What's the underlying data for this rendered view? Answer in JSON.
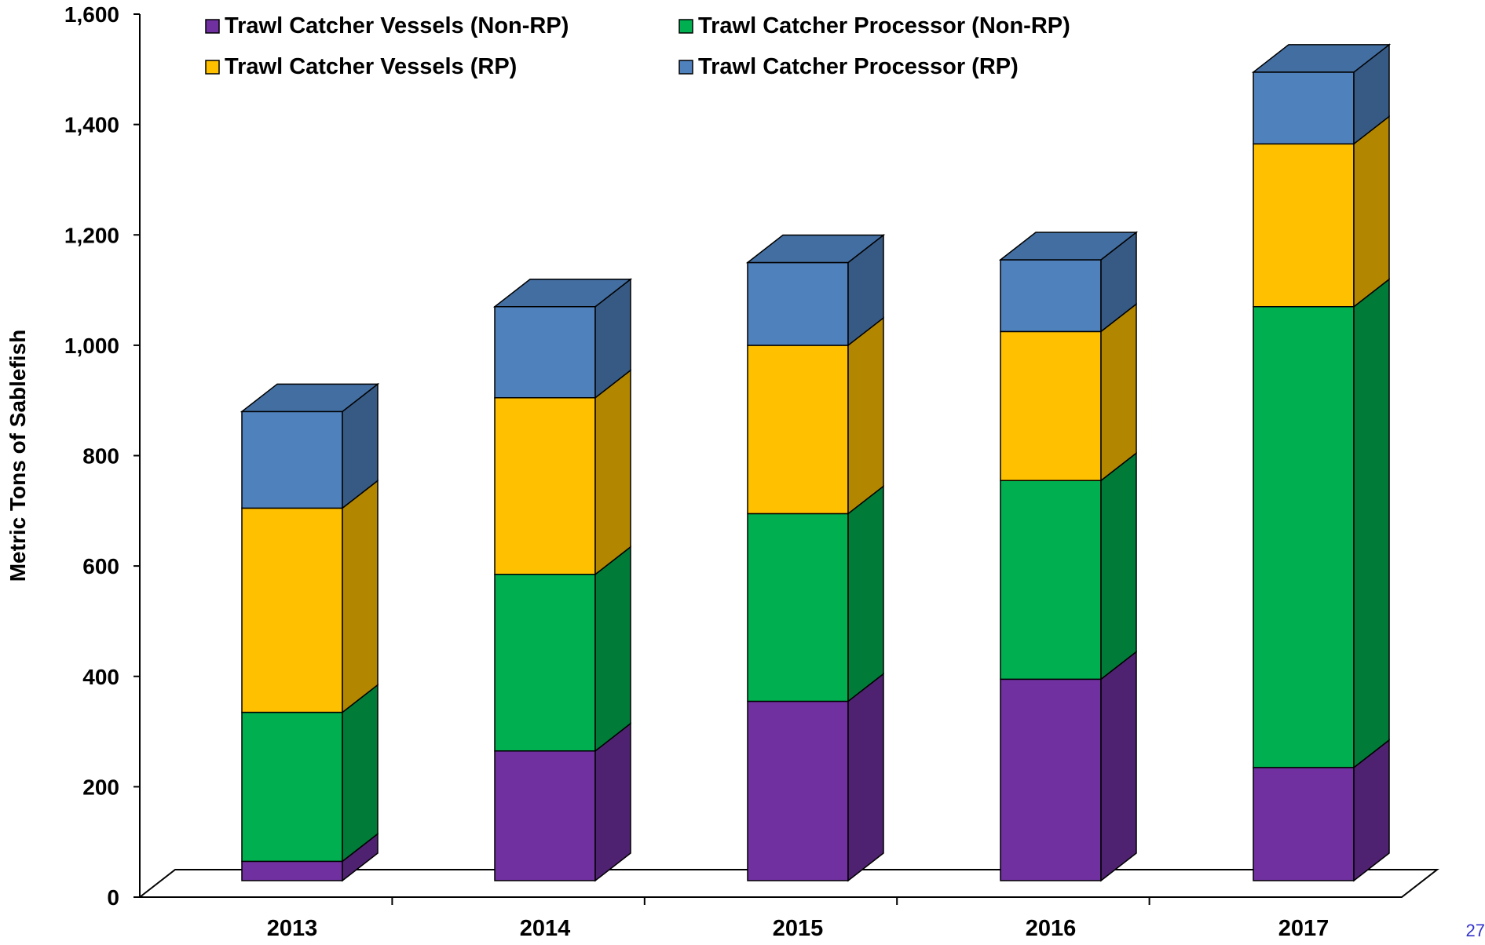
{
  "chart_data": {
    "type": "bar",
    "stacked": true,
    "style": "3d",
    "categories": [
      "2013",
      "2014",
      "2015",
      "2016",
      "2017"
    ],
    "series": [
      {
        "name": "Trawl Catcher Vessels (Non-RP)",
        "color": "#7030a0",
        "values": [
          35,
          235,
          325,
          365,
          205
        ]
      },
      {
        "name": "Trawl Catcher Processor (Non-RP)",
        "color": "#00b050",
        "values": [
          270,
          320,
          340,
          360,
          835
        ]
      },
      {
        "name": "Trawl Catcher Vessels (RP)",
        "color": "#ffc000",
        "values": [
          370,
          320,
          305,
          270,
          295
        ]
      },
      {
        "name": "Trawl Catcher Processor (RP)",
        "color": "#4f81bd",
        "values": [
          175,
          165,
          150,
          130,
          130
        ]
      }
    ],
    "ylabel": "Metric Tons of Sablefish",
    "ylim": [
      0,
      1600
    ],
    "yticks": [
      "0",
      "200",
      "400",
      "600",
      "800",
      "1,000",
      "1,200",
      "1,400",
      "1,600"
    ],
    "legend": "top",
    "grid": false
  },
  "page_number": "27"
}
